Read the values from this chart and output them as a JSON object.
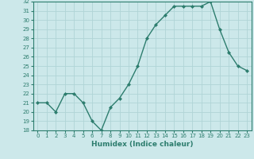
{
  "x": [
    0,
    1,
    2,
    3,
    4,
    5,
    6,
    7,
    8,
    9,
    10,
    11,
    12,
    13,
    14,
    15,
    16,
    17,
    18,
    19,
    20,
    21,
    22,
    23
  ],
  "y": [
    21,
    21,
    20,
    22,
    22,
    21,
    19,
    18,
    20.5,
    21.5,
    23,
    25,
    28,
    29.5,
    30.5,
    31.5,
    31.5,
    31.5,
    31.5,
    32,
    29,
    26.5,
    25,
    24.5
  ],
  "xlabel": "Humidex (Indice chaleur)",
  "ylim": [
    18,
    32
  ],
  "xlim": [
    -0.5,
    23.5
  ],
  "yticks": [
    18,
    19,
    20,
    21,
    22,
    23,
    24,
    25,
    26,
    27,
    28,
    29,
    30,
    31,
    32
  ],
  "xticks": [
    0,
    1,
    2,
    3,
    4,
    5,
    6,
    7,
    8,
    9,
    10,
    11,
    12,
    13,
    14,
    15,
    16,
    17,
    18,
    19,
    20,
    21,
    22,
    23
  ],
  "line_color": "#2d7d6e",
  "bg_color": "#cce8ea",
  "grid_color": "#b0d4d6",
  "marker_size": 2.0,
  "linewidth": 1.0,
  "tick_fontsize": 5.0,
  "xlabel_fontsize": 6.5
}
